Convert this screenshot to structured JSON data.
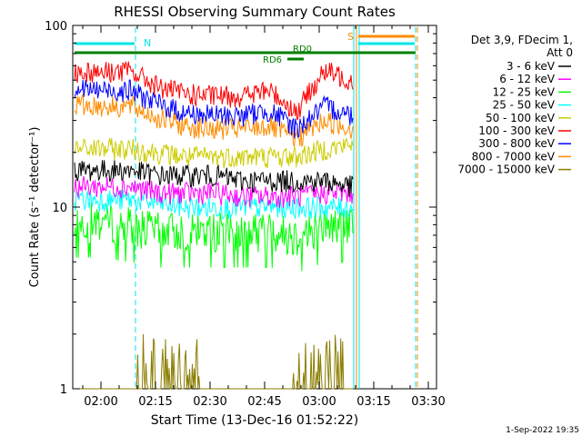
{
  "chart_data": {
    "type": "line",
    "title": "RHESSI Observing Summary Count Rates",
    "xlabel": "Start Time (13-Dec-16 01:52:22)",
    "ylabel": "Count Rate (s⁻¹ detector⁻¹)",
    "yscale": "log",
    "ylim": [
      1,
      100
    ],
    "xlim_minutes_after_0152_22": [
      0,
      100
    ],
    "x_ticks": [
      "02:00",
      "02:15",
      "02:30",
      "02:45",
      "03:00",
      "03:15",
      "03:30"
    ],
    "y_ticks": [
      "1",
      "10",
      "100"
    ],
    "legend_header": [
      "Det 3,9, FDecim 1,",
      "Att 0"
    ],
    "legend_position": "right",
    "footer_date": "1-Sep-2022 19:35",
    "annotations": [
      {
        "text": "N",
        "color": "#00e5e5"
      },
      {
        "text": "S",
        "color": "#ff8c00"
      },
      {
        "text": "RD0",
        "color": "#008000"
      },
      {
        "text": "RD6",
        "color": "#008000"
      }
    ],
    "series": [
      {
        "name": "3 - 6 keV",
        "color": "#000000",
        "y": [
          16,
          16,
          16,
          15,
          15,
          15,
          14,
          14,
          14,
          14,
          13
        ]
      },
      {
        "name": "6 - 12 keV",
        "color": "#ff00ff",
        "y": [
          13,
          13,
          13,
          12,
          12,
          12,
          11.5,
          11.5,
          11.5,
          12,
          12
        ]
      },
      {
        "name": "12 - 25 keV",
        "color": "#00ff00",
        "y": [
          8.5,
          8.5,
          8,
          7.5,
          7.5,
          7.5,
          7.5,
          7.5,
          7,
          8,
          8
        ]
      },
      {
        "name": "25 - 50 keV",
        "color": "#00ffff",
        "y": [
          11,
          11,
          11,
          10.5,
          10,
          10,
          10,
          10,
          10,
          10,
          10
        ]
      },
      {
        "name": "50 - 100 keV",
        "color": "#cccc00",
        "y": [
          21,
          21,
          21,
          20,
          19,
          19,
          19,
          19,
          19,
          21,
          22
        ]
      },
      {
        "name": "100 - 300 keV",
        "color": "#ff0000",
        "y": [
          56,
          56,
          56,
          46,
          42,
          41,
          41,
          44,
          33,
          56,
          50
        ]
      },
      {
        "name": "300 - 800 keV",
        "color": "#0000ff",
        "y": [
          45,
          44,
          44,
          37,
          33,
          32,
          32,
          34,
          27,
          36,
          32
        ]
      },
      {
        "name": "800 - 7000 keV",
        "color": "#ff8c00",
        "y": [
          37,
          36,
          36,
          31,
          28,
          27,
          27,
          28,
          24,
          30,
          27
        ]
      },
      {
        "name": "7000 - 15000 keV",
        "color": "#8b7d00",
        "y": [
          1,
          1,
          1.6,
          1.5,
          1,
          1,
          1,
          1.3,
          1.6,
          1.6,
          1
        ]
      }
    ]
  }
}
